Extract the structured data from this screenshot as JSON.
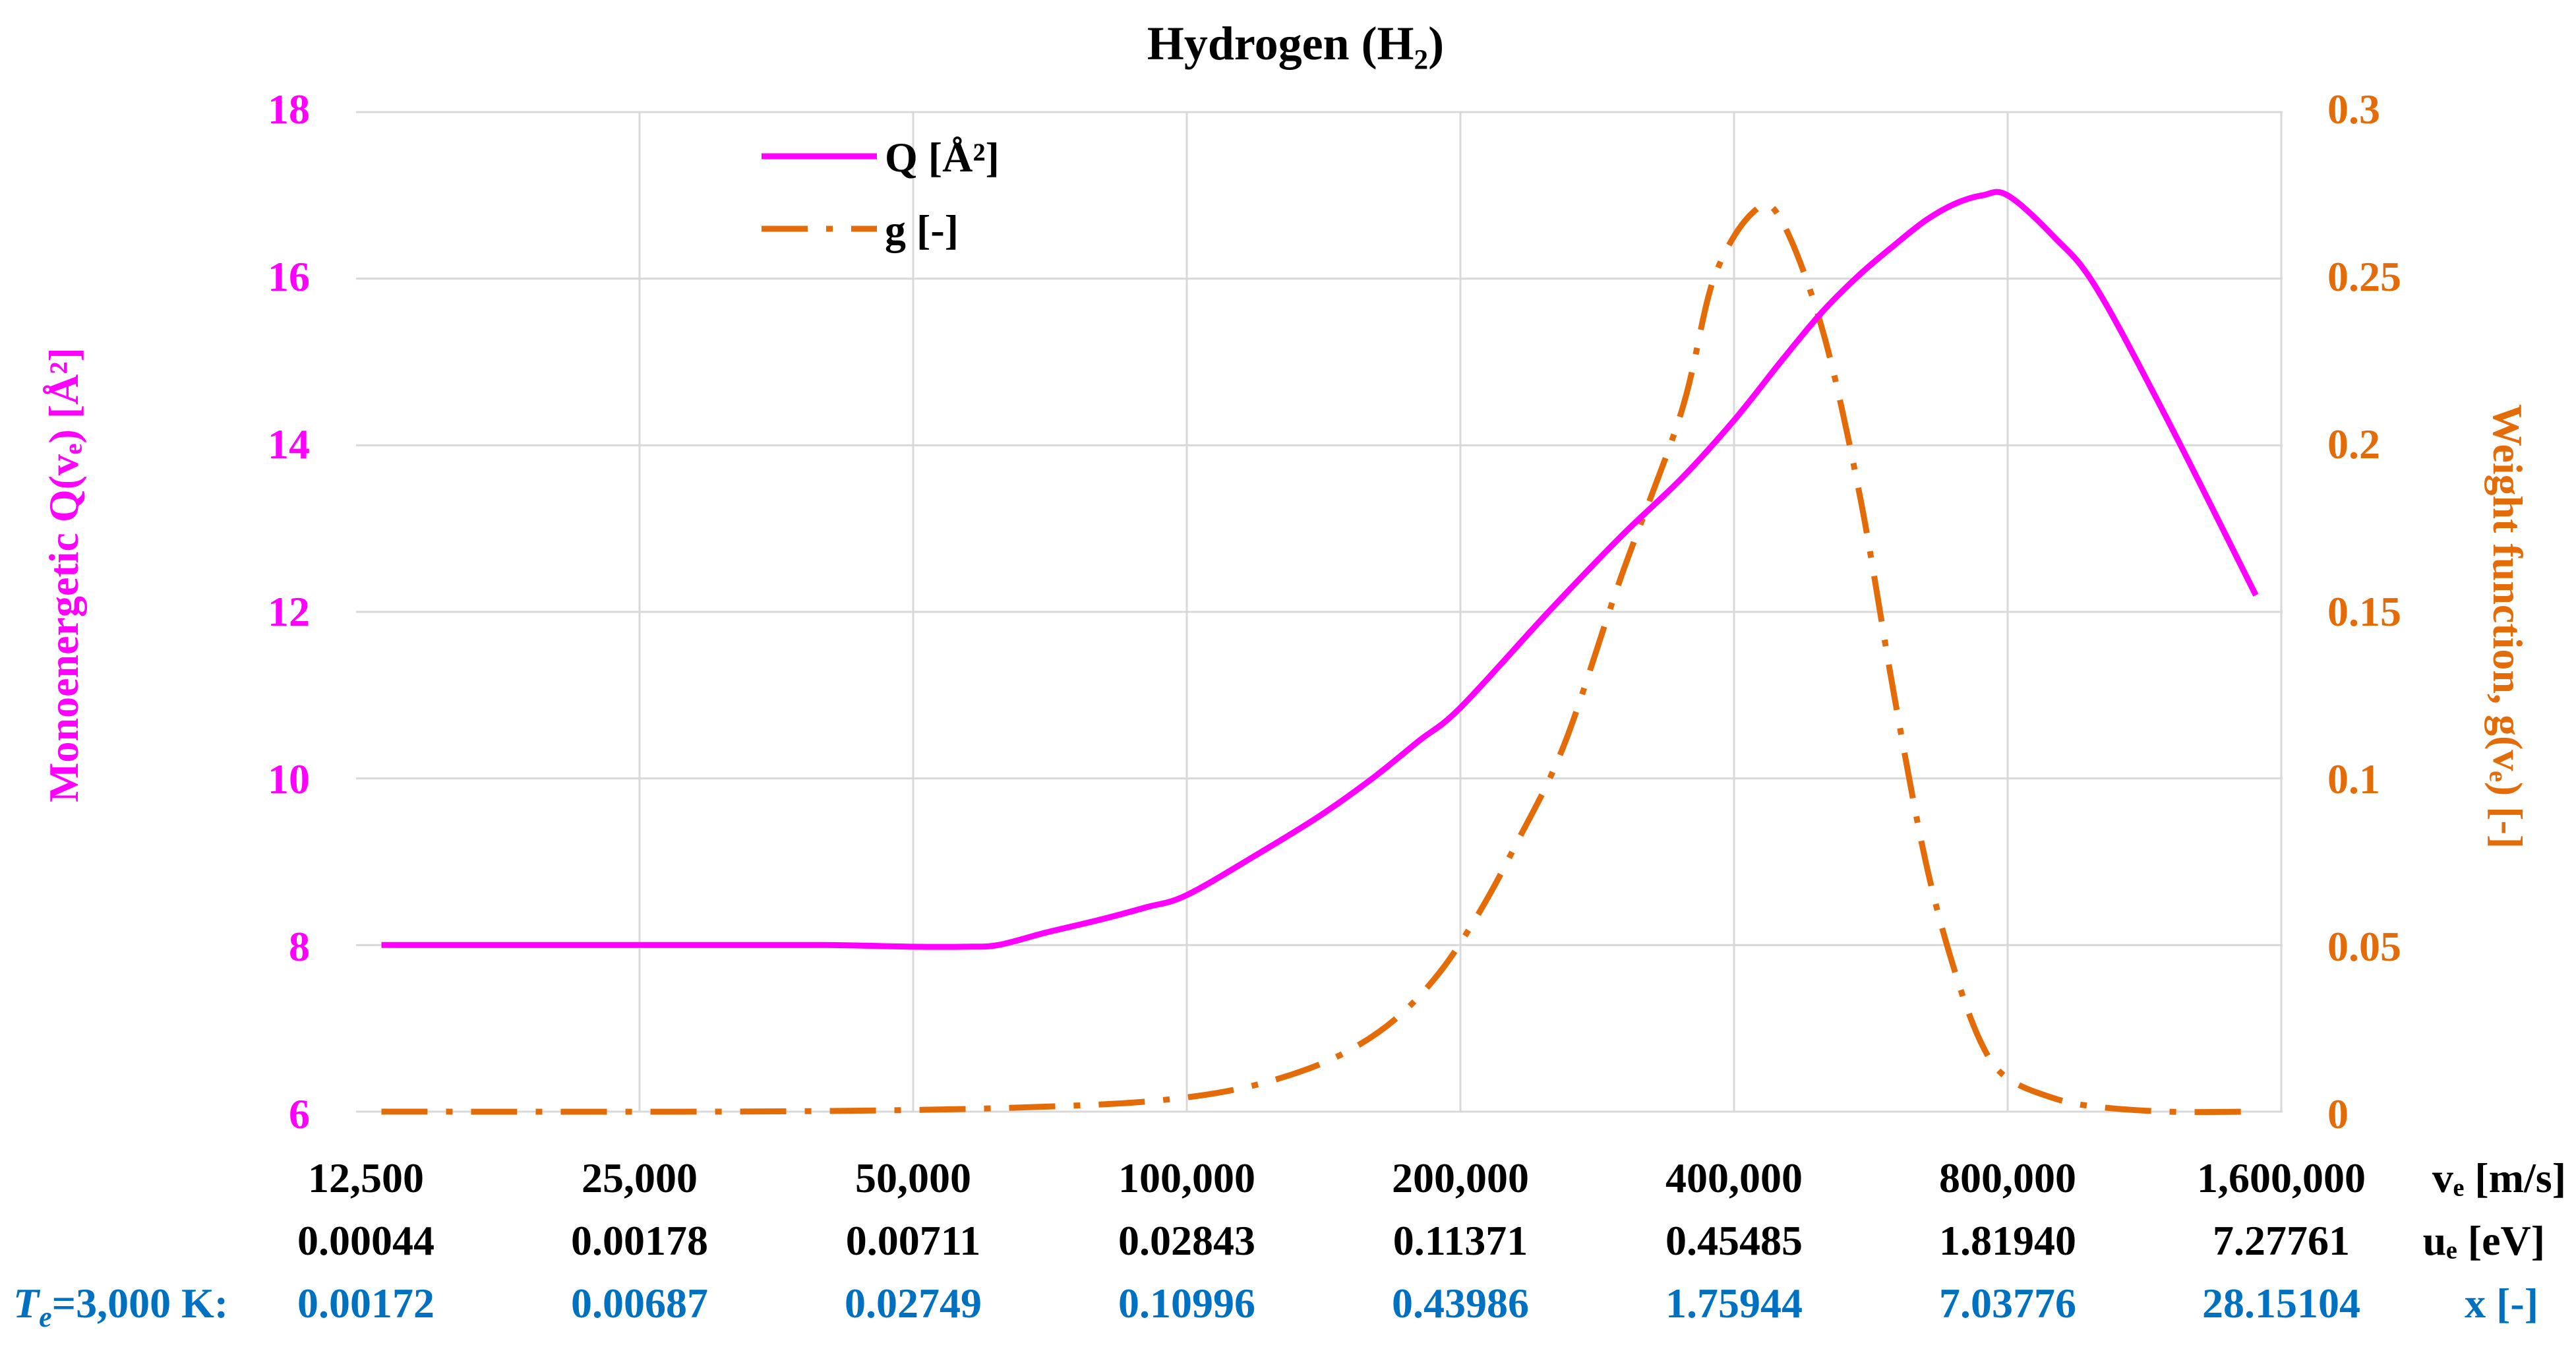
{
  "chart_data": {
    "type": "line",
    "title": "Hydrogen (H₂)",
    "x_scale": "log2",
    "x_ticks": [
      12500,
      25000,
      50000,
      100000,
      200000,
      400000,
      800000,
      1600000
    ],
    "x_tick_labels": [
      "12,500",
      "25,000",
      "50,000",
      "100,000",
      "200,000",
      "400,000",
      "800,000",
      "1,600,000"
    ],
    "x_label": "vₑ [m/s]",
    "energy_row": {
      "label": "uₑ [eV]",
      "values": [
        "0.00044",
        "0.00178",
        "0.00711",
        "0.02843",
        "0.11371",
        "0.45485",
        "1.81940",
        "7.27761"
      ]
    },
    "x_row": {
      "prefix": "T",
      "prefix_sub": "e",
      "prefix_rest": "=3,000 K:",
      "label": "x [-]",
      "values": [
        "0.00172",
        "0.00687",
        "0.02749",
        "0.10996",
        "0.43986",
        "1.75944",
        "7.03776",
        "28.15104"
      ]
    },
    "y_left": {
      "label": "Monoenergetic Q(vₑ) [Å²]",
      "ylim": [
        6,
        18
      ],
      "ticks": [
        6,
        8,
        10,
        12,
        14,
        16,
        18
      ],
      "tick_labels": [
        "6",
        "8",
        "10",
        "12",
        "14",
        "16",
        "18"
      ]
    },
    "y_right": {
      "label": "Weight function, g(vₑ) [-]",
      "ylim": [
        0,
        0.3
      ],
      "ticks": [
        0,
        0.05,
        0.1,
        0.15,
        0.2,
        0.25,
        0.3
      ],
      "tick_labels": [
        "0",
        "0.05",
        "0.1",
        "0.15",
        "0.2",
        "0.25",
        "0.3"
      ]
    },
    "series": [
      {
        "name": "Q [Å²]",
        "axis": "left",
        "color": "#FF00FF",
        "style": "solid",
        "x": [
          13000,
          20000,
          30000,
          40000,
          50000,
          57000,
          62000,
          70000,
          80000,
          90000,
          100000,
          120000,
          140000,
          160000,
          180000,
          200000,
          250000,
          300000,
          350000,
          400000,
          450000,
          500000,
          550000,
          600000,
          650000,
          700000,
          750000,
          800000,
          900000,
          1000000,
          1200000,
          1500000
        ],
        "values": [
          8.0,
          8.0,
          8.0,
          8.0,
          7.98,
          7.98,
          8.0,
          8.15,
          8.3,
          8.45,
          8.6,
          9.1,
          9.55,
          10.0,
          10.45,
          10.85,
          12.0,
          12.9,
          13.6,
          14.3,
          15.0,
          15.6,
          16.05,
          16.4,
          16.7,
          16.9,
          17.0,
          17.0,
          16.5,
          15.9,
          14.3,
          12.2
        ]
      },
      {
        "name": "g [-]",
        "axis": "right",
        "color": "#E36C09",
        "style": "dash-dot",
        "x": [
          13000,
          30000,
          50000,
          70000,
          90000,
          110000,
          130000,
          150000,
          170000,
          190000,
          210000,
          230000,
          260000,
          300000,
          350000,
          380000,
          420000,
          450000,
          500000,
          550000,
          600000,
          650000,
          700000,
          750000,
          800000,
          900000,
          1000000,
          1200000,
          1500000
        ],
        "values": [
          0.0,
          0.0,
          0.0005,
          0.0015,
          0.003,
          0.006,
          0.011,
          0.018,
          0.028,
          0.042,
          0.06,
          0.08,
          0.11,
          0.16,
          0.21,
          0.25,
          0.27,
          0.268,
          0.235,
          0.185,
          0.125,
          0.075,
          0.042,
          0.02,
          0.01,
          0.004,
          0.0015,
          0.0,
          0.0
        ]
      }
    ],
    "legend": {
      "placement": "top-left",
      "entries": [
        "Q [Å²]",
        "g [-]"
      ]
    }
  }
}
